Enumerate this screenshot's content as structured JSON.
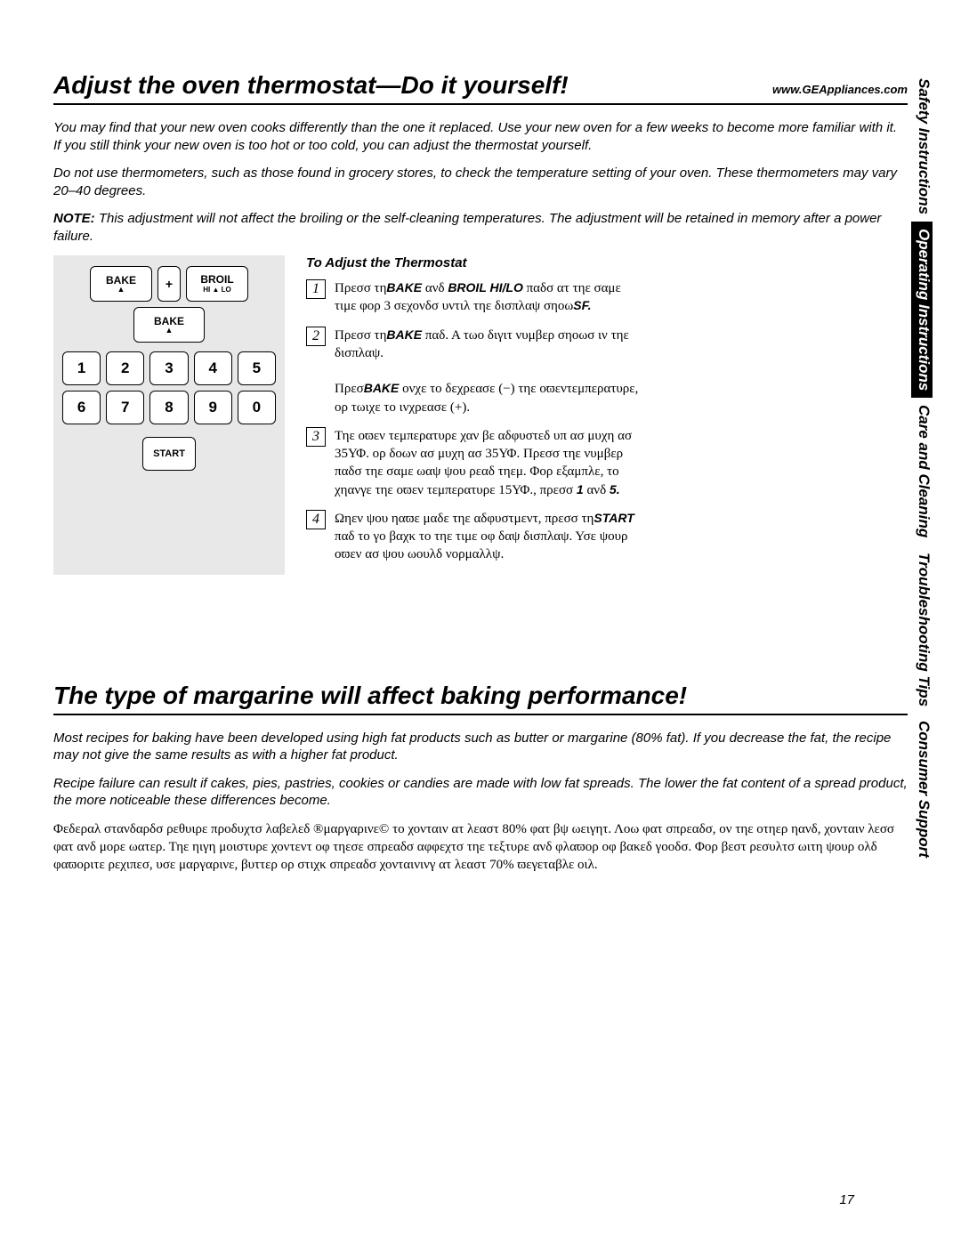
{
  "header1": {
    "title": "Adjust the oven thermostat—Do it yourself!",
    "url": "www.GEAppliances.com"
  },
  "intro": {
    "p1": "You may find that your new oven cooks differently than the one it replaced. Use your new oven for a few weeks to become more familiar with it. If you still think your new oven is too hot or too cold, you can adjust the thermostat yourself.",
    "p2": "Do not use thermometers, such as those found in grocery stores, to check the temperature setting of your oven. These thermometers may vary 20–40 degrees.",
    "note_label": "NOTE:",
    "p3": " This adjustment will not affect the broiling or the self-cleaning temperatures. The adjustment will be retained in memory after a power failure."
  },
  "keypad": {
    "bake": "BAKE",
    "plus": "+",
    "broil": "BROIL",
    "broil_sub": "HI ▲ LO",
    "bake2": "BAKE",
    "nums": [
      "1",
      "2",
      "3",
      "4",
      "5",
      "6",
      "7",
      "8",
      "9",
      "0"
    ],
    "start": "START"
  },
  "inst": {
    "title": "To Adjust the Thermostat",
    "steps": [
      {
        "n": "1",
        "pre": "Πρεσσ τη",
        "b1": "BAKE",
        "mid": " ανδ ",
        "b2": "BROIL HI/LO",
        "post": " παδσ ατ τηε σαμε τιμε φορ 3 σεχονδσ υντιλ τηε δισπλαψ σηοω",
        "b3": "SF."
      },
      {
        "n": "2",
        "pre": "Πρεσσ τη",
        "b1": "BAKE",
        "post": " παδ. Α τωο διγιτ νυμβερ σηοωσ ιν τηε δισπλαψ."
      },
      {
        "n": "",
        "pre": "Πρεσ",
        "b1": "BAKE",
        "post": " ονχε το δεχρεασε (−) τηε οϖεντεμπερατυρε, ορ τωιχε το ινχρεασε (+)."
      },
      {
        "n": "3",
        "pre": "Τηε οϖεν τεμπερατυρε χαν βε αδφυστεδ υπ ασ μυχη ασ 35ΥΦ. ορ δοων ασ μυχη ασ 35ΥΦ. Πρεσσ τηε νυμβερ παδσ τηε σαμε ωαψ ψου ρεαδ τηεμ. Φορ εξαμπλε, το χηανγε τηε οϖεν τεμπερατυρε 15ΥΦ., πρεσσ ",
        "b1": "1",
        "mid": " ανδ ",
        "b2": "5.",
        "post": ""
      },
      {
        "n": "4",
        "pre": "Ωηεν ψου ηαϖε μαδε τηε αδφυστμεντ, πρεσσ τη",
        "b1": "START",
        "post": " παδ το γο βαχκ το τηε τιμε οφ δαψ δισπλαψ. Υσε ψουρ οϖεν ασ ψου ωουλδ νορμαλλψ."
      }
    ]
  },
  "header2": {
    "title": "The type of margarine will affect baking performance!"
  },
  "sec2": {
    "p1": "Most recipes for baking have been developed using high fat products such as butter or margarine (80% fat). If you decrease the fat, the recipe may not give the same results as with a higher fat product.",
    "p2": "Recipe failure can result if cakes, pies, pastries, cookies or candies are made with low fat spreads. The lower the fat content of a spread product, the more noticeable these differences become.",
    "p3": "Φεδεραλ στανδαρδσ ρεθυιρε προδυχτσ λαβελεδ ®μαργαρινε© το χονταιν ατ λεαστ 80% φατ βψ ωειγητ. Λοω φατ σπρεαδσ, ον τηε οτηερ ηανδ, χονταιν λεσσ φατ ανδ μορε ωατερ. Τηε ηιγη μοιστυρε χοντεντ οφ τηεσε σπρεαδσ αφφεχτσ τηε τεξτυρε ανδ φλαϖορ οφ βακεδ γοοδσ. Φορ βεστ ρεσυλτσ ωιτη ψουρ ολδ φαϖοριτε ρεχιπεσ, υσε μαργαρινε, βυττερ ορ στιχκ σπρεαδσ χονταινινγ ατ λεαστ 70% ϖεγεταβλε οιλ."
  },
  "tabs": {
    "t1": "Safety Instructions",
    "t2": "Operating Instructions",
    "t3": "Care and Cleaning",
    "t4": "Troubleshooting Tips",
    "t5": "Consumer Support"
  },
  "page": "17"
}
